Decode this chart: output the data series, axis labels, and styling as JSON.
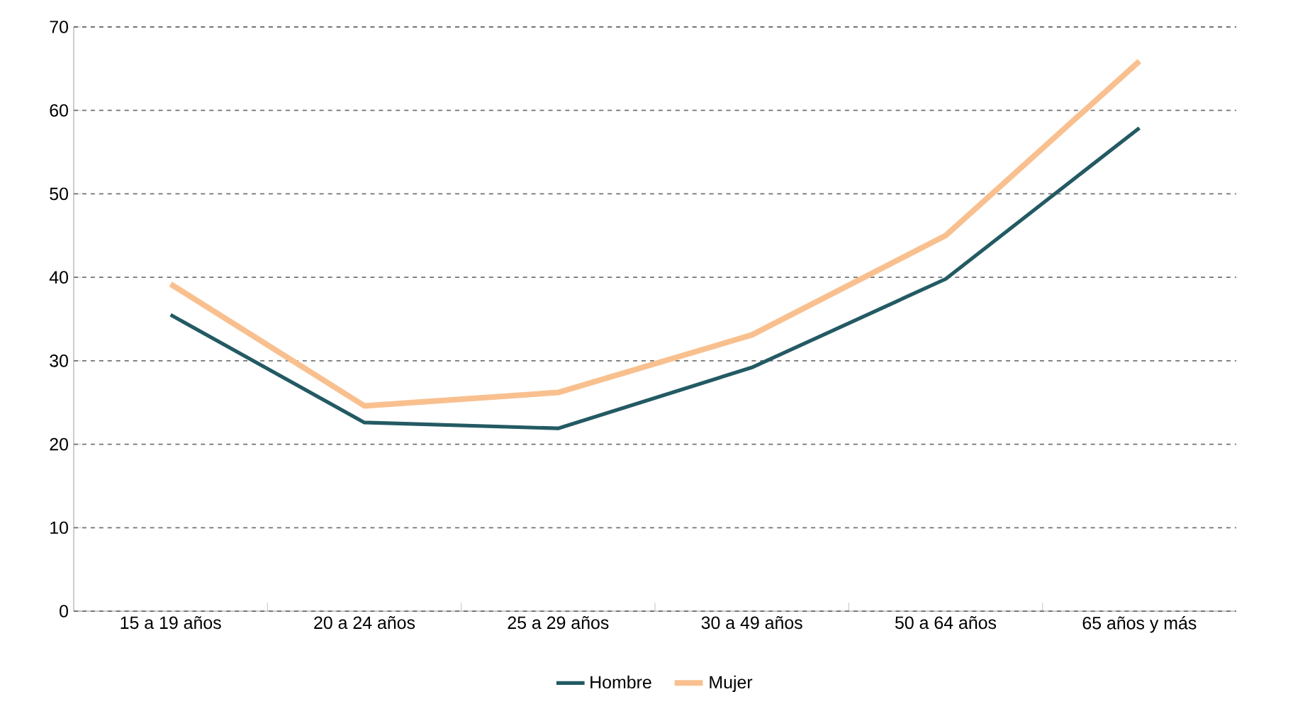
{
  "chart_data": {
    "type": "line",
    "categories": [
      "15 a 19 años",
      "20 a 24 años",
      "25 a 29 años",
      "30 a 49 años",
      "50 a 64 años",
      "65  años y más"
    ],
    "series": [
      {
        "name": "Hombre",
        "color": "#235a63",
        "values": [
          35.5,
          22.6,
          21.9,
          29.2,
          39.8,
          57.9
        ]
      },
      {
        "name": "Mujer",
        "color": "#f9c08f",
        "values": [
          39.2,
          24.6,
          26.2,
          33.1,
          45.0,
          65.9
        ]
      }
    ],
    "ylim": [
      0,
      70
    ],
    "yticks": [
      0,
      10,
      20,
      30,
      40,
      50,
      60,
      70
    ],
    "grid": "y",
    "legend": "bottom",
    "marker": "none",
    "line_style": "solid"
  }
}
